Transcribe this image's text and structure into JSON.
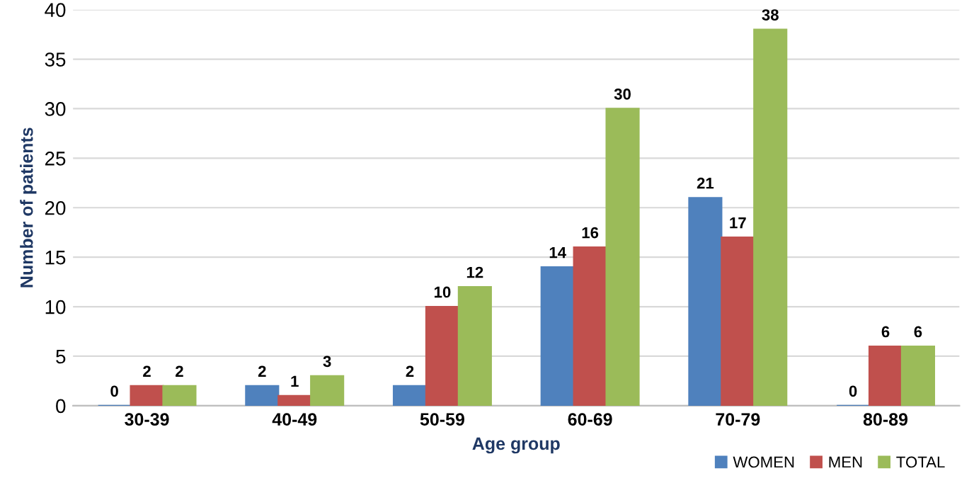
{
  "chart_data": {
    "type": "bar",
    "xlabel": "Age group",
    "ylabel": "Number of patients",
    "categories": [
      "30-39",
      "40-49",
      "50-59",
      "60-69",
      "70-79",
      "80-89"
    ],
    "series": [
      {
        "name": "WOMEN",
        "color": "#4f81bd",
        "values": [
          0,
          2,
          2,
          14,
          21,
          0
        ]
      },
      {
        "name": "MEN",
        "color": "#c0504d",
        "values": [
          2,
          1,
          10,
          16,
          17,
          6
        ]
      },
      {
        "name": "TOTAL",
        "color": "#9bbb59",
        "values": [
          2,
          3,
          12,
          30,
          38,
          6
        ]
      }
    ],
    "ylim": [
      0,
      40
    ],
    "yticks": [
      0,
      5,
      10,
      15,
      20,
      25,
      30,
      35,
      40
    ],
    "grid": "y",
    "legend": "bottom right",
    "data_labels": true
  }
}
